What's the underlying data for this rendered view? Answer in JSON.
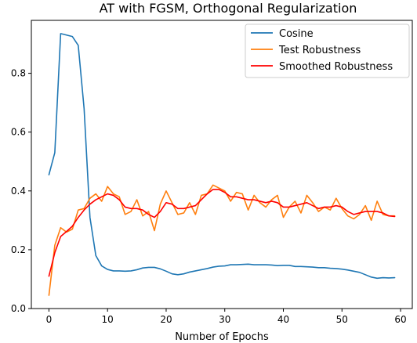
{
  "chart_data": {
    "type": "line",
    "title": "AT with FGSM, Orthogonal Regularization",
    "xlabel": "Number of Epochs",
    "ylabel": "",
    "xlim": [
      -3,
      62
    ],
    "ylim": [
      0.0,
      0.98
    ],
    "xticks": [
      0,
      10,
      20,
      30,
      40,
      50,
      60
    ],
    "yticks": [
      0.0,
      0.2,
      0.4,
      0.6,
      0.8
    ],
    "xtick_labels": [
      "0",
      "10",
      "20",
      "30",
      "40",
      "50",
      "60"
    ],
    "ytick_labels": [
      "0.0",
      "0.2",
      "0.4",
      "0.6",
      "0.8"
    ],
    "grid": false,
    "legend_position": "top-right",
    "x": [
      0,
      1,
      2,
      3,
      4,
      5,
      6,
      7,
      8,
      9,
      10,
      11,
      12,
      13,
      14,
      15,
      16,
      17,
      18,
      19,
      20,
      21,
      22,
      23,
      24,
      25,
      26,
      27,
      28,
      29,
      30,
      31,
      32,
      33,
      34,
      35,
      36,
      37,
      38,
      39,
      40,
      41,
      42,
      43,
      44,
      45,
      46,
      47,
      48,
      49,
      50,
      51,
      52,
      53,
      54,
      55,
      56,
      57,
      58,
      59
    ],
    "series": [
      {
        "name": "Cosine",
        "color": "#1f77b4",
        "values": [
          0.455,
          0.53,
          0.935,
          0.93,
          0.925,
          0.895,
          0.68,
          0.31,
          0.18,
          0.145,
          0.133,
          0.128,
          0.128,
          0.127,
          0.128,
          0.132,
          0.138,
          0.14,
          0.14,
          0.135,
          0.127,
          0.118,
          0.115,
          0.118,
          0.124,
          0.128,
          0.132,
          0.136,
          0.141,
          0.144,
          0.145,
          0.149,
          0.149,
          0.15,
          0.151,
          0.149,
          0.149,
          0.149,
          0.148,
          0.146,
          0.147,
          0.147,
          0.143,
          0.143,
          0.142,
          0.141,
          0.139,
          0.139,
          0.137,
          0.136,
          0.134,
          0.131,
          0.127,
          0.123,
          0.115,
          0.107,
          0.103,
          0.105,
          0.104,
          0.105
        ]
      },
      {
        "name": "Test Robustness",
        "color": "#ff7f0e",
        "values": [
          0.045,
          0.215,
          0.275,
          0.26,
          0.27,
          0.335,
          0.34,
          0.375,
          0.39,
          0.365,
          0.415,
          0.39,
          0.38,
          0.32,
          0.33,
          0.37,
          0.315,
          0.33,
          0.265,
          0.355,
          0.4,
          0.36,
          0.32,
          0.325,
          0.36,
          0.32,
          0.385,
          0.39,
          0.42,
          0.41,
          0.4,
          0.365,
          0.395,
          0.39,
          0.335,
          0.385,
          0.36,
          0.345,
          0.37,
          0.385,
          0.31,
          0.345,
          0.365,
          0.325,
          0.385,
          0.36,
          0.33,
          0.345,
          0.335,
          0.375,
          0.34,
          0.315,
          0.305,
          0.32,
          0.35,
          0.3,
          0.365,
          0.32,
          0.315,
          0.315
        ]
      },
      {
        "name": "Smoothed Robustness",
        "color": "#ff0000",
        "values": [
          0.11,
          0.19,
          0.245,
          0.262,
          0.28,
          0.31,
          0.335,
          0.355,
          0.37,
          0.38,
          0.39,
          0.385,
          0.37,
          0.345,
          0.34,
          0.34,
          0.335,
          0.32,
          0.31,
          0.33,
          0.36,
          0.355,
          0.34,
          0.34,
          0.345,
          0.35,
          0.37,
          0.39,
          0.405,
          0.405,
          0.395,
          0.38,
          0.38,
          0.375,
          0.37,
          0.37,
          0.365,
          0.36,
          0.365,
          0.36,
          0.345,
          0.345,
          0.35,
          0.355,
          0.36,
          0.35,
          0.34,
          0.345,
          0.345,
          0.35,
          0.345,
          0.33,
          0.32,
          0.325,
          0.33,
          0.33,
          0.33,
          0.325,
          0.315,
          0.313
        ]
      }
    ]
  }
}
